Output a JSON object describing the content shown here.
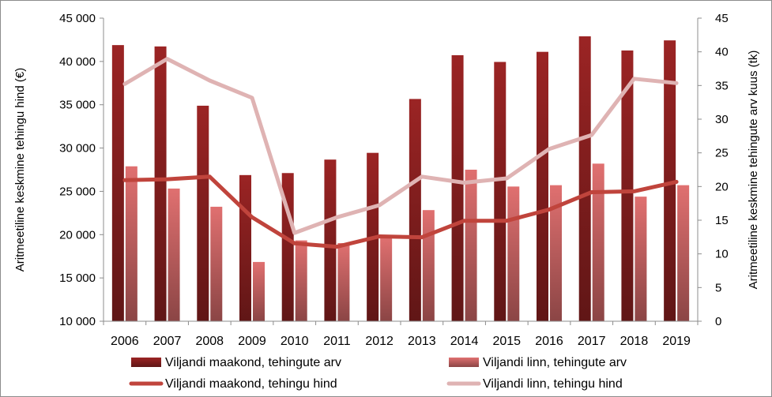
{
  "chart_data": {
    "type": "bar",
    "categories": [
      "2006",
      "2007",
      "2008",
      "2009",
      "2010",
      "2011",
      "2012",
      "2013",
      "2014",
      "2015",
      "2016",
      "2017",
      "2018",
      "2019"
    ],
    "series": [
      {
        "name": "Viljandi maakond, tehingute arv",
        "kind": "bar",
        "axis": "right",
        "color": "#9b2424",
        "values": [
          41.0,
          40.8,
          32.0,
          21.7,
          22.0,
          24.0,
          25.0,
          33.0,
          39.5,
          38.5,
          40.0,
          42.3,
          40.2,
          41.7
        ]
      },
      {
        "name": "Viljandi linn, tehingute arv",
        "kind": "bar",
        "axis": "right",
        "color": "#e07070",
        "values": [
          23.0,
          19.7,
          17.0,
          8.8,
          12.0,
          11.6,
          12.5,
          16.5,
          22.5,
          20.0,
          20.2,
          23.4,
          18.5,
          20.2
        ]
      },
      {
        "name": "Viljandi maakond, tehingu hind",
        "kind": "line",
        "axis": "left",
        "color": "#c0443c",
        "values": [
          26300,
          26400,
          26700,
          22000,
          19000,
          18600,
          19800,
          19700,
          21600,
          21600,
          22900,
          24900,
          25000,
          26100
        ]
      },
      {
        "name": "Viljandi linn, tehingu hind",
        "kind": "line",
        "axis": "left",
        "color": "#dfb3b3",
        "values": [
          37400,
          40300,
          37800,
          35800,
          20200,
          22000,
          23400,
          26700,
          26000,
          26500,
          29900,
          31500,
          38000,
          37500
        ]
      }
    ],
    "y_left": {
      "label": "Aritmeetiline keskmine tehingu hind (€)",
      "ylim": [
        10000,
        45000
      ],
      "ticks": [
        10000,
        15000,
        20000,
        25000,
        30000,
        35000,
        40000,
        45000
      ],
      "tick_labels": [
        "10 000",
        "15 000",
        "20 000",
        "25 000",
        "30 000",
        "35 000",
        "40 000",
        "45 000"
      ]
    },
    "y_right": {
      "label": "Aritmeetiline keskmine tehingute arv kuus (tk)",
      "ylim": [
        0,
        45
      ],
      "ticks": [
        0,
        5,
        10,
        15,
        20,
        25,
        30,
        35,
        40,
        45
      ],
      "tick_labels": [
        "0",
        "5",
        "10",
        "15",
        "20",
        "25",
        "30",
        "35",
        "40",
        "45"
      ]
    },
    "grid": false,
    "legend_position": "bottom"
  }
}
